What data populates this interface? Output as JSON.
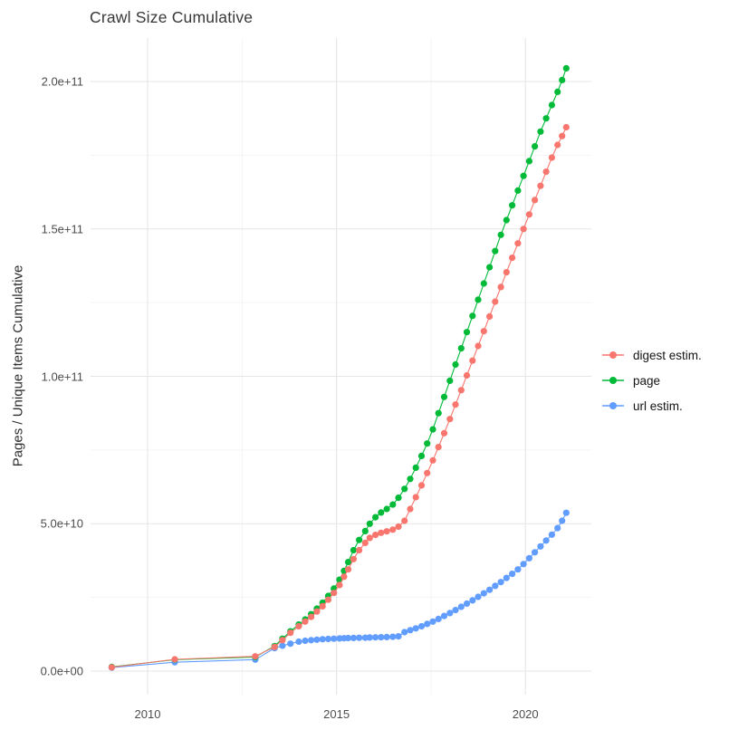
{
  "header": {
    "title": "Crawl Size Cumulative"
  },
  "y_axis": {
    "title": "Pages / Unique Items Cumulative",
    "ticks": [
      {
        "label": "0.0e+00",
        "value_billions": 0
      },
      {
        "label": "5.0e+10",
        "value_billions": 50
      },
      {
        "label": "1.0e+11",
        "value_billions": 100
      },
      {
        "label": "1.5e+11",
        "value_billions": 150
      },
      {
        "label": "2.0e+11",
        "value_billions": 200
      }
    ],
    "minor_values_billions": [
      25,
      75,
      125,
      175
    ]
  },
  "x_axis": {
    "ticks": [
      {
        "label": "2010",
        "value": 2010
      },
      {
        "label": "2015",
        "value": 2015
      },
      {
        "label": "2020",
        "value": 2020
      }
    ],
    "minor_values": [
      2012.5,
      2017.5
    ]
  },
  "legend": {
    "position": "right",
    "items": [
      {
        "label": "digest estim.",
        "color": "#F8766D",
        "series": "digest"
      },
      {
        "label": "page",
        "color": "#00BA38",
        "series": "page"
      },
      {
        "label": "url estim.",
        "color": "#619CFF",
        "series": "url"
      }
    ]
  },
  "chart_data": {
    "type": "line",
    "title": "Crawl Size Cumulative",
    "xlabel": "",
    "ylabel": "Pages / Unique Items Cumulative",
    "value_units": "billions (1e9) of pages / unique items, cumulative",
    "x_range_years": [
      2008.46,
      2021.7
    ],
    "y_range_billions": [
      -9,
      215
    ],
    "grid": true,
    "marker": "point-with-line",
    "draw_order": [
      "url",
      "page",
      "digest"
    ],
    "series": [
      {
        "name": "digest estim.",
        "key": "digest",
        "color": "#F8766D",
        "points": [
          [
            2009.05,
            1.3
          ],
          [
            2010.72,
            4.0
          ],
          [
            2012.85,
            5.0
          ],
          [
            2013.36,
            8.2
          ],
          [
            2013.57,
            10.5
          ],
          [
            2013.78,
            13.0
          ],
          [
            2014.0,
            15.2
          ],
          [
            2014.17,
            16.8
          ],
          [
            2014.33,
            18.4
          ],
          [
            2014.48,
            20.2
          ],
          [
            2014.63,
            22.0
          ],
          [
            2014.78,
            24.2
          ],
          [
            2014.93,
            26.5
          ],
          [
            2015.08,
            29.2
          ],
          [
            2015.2,
            32.0
          ],
          [
            2015.31,
            34.5
          ],
          [
            2015.45,
            38.0
          ],
          [
            2015.6,
            41.0
          ],
          [
            2015.76,
            43.5
          ],
          [
            2015.88,
            45.2
          ],
          [
            2016.03,
            46.2
          ],
          [
            2016.18,
            46.9
          ],
          [
            2016.33,
            47.4
          ],
          [
            2016.49,
            48.0
          ],
          [
            2016.64,
            49.0
          ],
          [
            2016.8,
            51.0
          ],
          [
            2016.95,
            55.0
          ],
          [
            2017.1,
            59.0
          ],
          [
            2017.25,
            63.0
          ],
          [
            2017.4,
            67.2
          ],
          [
            2017.55,
            71.5
          ],
          [
            2017.7,
            76.0
          ],
          [
            2017.85,
            80.7
          ],
          [
            2018.0,
            85.5
          ],
          [
            2018.15,
            90.4
          ],
          [
            2018.3,
            95.3
          ],
          [
            2018.45,
            100.3
          ],
          [
            2018.6,
            105.3
          ],
          [
            2018.75,
            110.3
          ],
          [
            2018.9,
            115.3
          ],
          [
            2019.05,
            120.3
          ],
          [
            2019.2,
            125.3
          ],
          [
            2019.35,
            130.3
          ],
          [
            2019.5,
            135.3
          ],
          [
            2019.65,
            140.2
          ],
          [
            2019.8,
            145.1
          ],
          [
            2019.95,
            150.0
          ],
          [
            2020.1,
            154.9
          ],
          [
            2020.25,
            159.8
          ],
          [
            2020.4,
            164.6
          ],
          [
            2020.55,
            169.4
          ],
          [
            2020.7,
            174.2
          ],
          [
            2020.85,
            178.5
          ],
          [
            2020.97,
            181.5
          ],
          [
            2021.08,
            184.5
          ]
        ]
      },
      {
        "name": "page",
        "key": "page",
        "color": "#00BA38",
        "points": [
          [
            2009.05,
            1.4
          ],
          [
            2010.72,
            3.9
          ],
          [
            2012.85,
            4.8
          ],
          [
            2013.36,
            8.5
          ],
          [
            2013.57,
            11.0
          ],
          [
            2013.78,
            13.5
          ],
          [
            2014.0,
            15.8
          ],
          [
            2014.17,
            17.5
          ],
          [
            2014.33,
            19.3
          ],
          [
            2014.48,
            21.2
          ],
          [
            2014.63,
            23.2
          ],
          [
            2014.78,
            25.5
          ],
          [
            2014.93,
            28.0
          ],
          [
            2015.08,
            31.0
          ],
          [
            2015.2,
            34.0
          ],
          [
            2015.31,
            37.0
          ],
          [
            2015.45,
            41.0
          ],
          [
            2015.6,
            44.5
          ],
          [
            2015.76,
            47.5
          ],
          [
            2015.88,
            50.0
          ],
          [
            2016.03,
            52.2
          ],
          [
            2016.18,
            53.8
          ],
          [
            2016.33,
            55.0
          ],
          [
            2016.49,
            56.5
          ],
          [
            2016.64,
            58.8
          ],
          [
            2016.8,
            61.8
          ],
          [
            2016.95,
            65.2
          ],
          [
            2017.1,
            69.0
          ],
          [
            2017.25,
            73.0
          ],
          [
            2017.4,
            77.2
          ],
          [
            2017.55,
            82.0
          ],
          [
            2017.7,
            87.5
          ],
          [
            2017.85,
            93.0
          ],
          [
            2018.0,
            98.5
          ],
          [
            2018.15,
            104.0
          ],
          [
            2018.3,
            109.5
          ],
          [
            2018.45,
            115.0
          ],
          [
            2018.6,
            120.5
          ],
          [
            2018.75,
            126.0
          ],
          [
            2018.9,
            131.5
          ],
          [
            2019.05,
            137.0
          ],
          [
            2019.2,
            142.5
          ],
          [
            2019.35,
            148.0
          ],
          [
            2019.5,
            153.0
          ],
          [
            2019.65,
            158.0
          ],
          [
            2019.8,
            163.0
          ],
          [
            2019.95,
            168.0
          ],
          [
            2020.1,
            173.0
          ],
          [
            2020.25,
            178.0
          ],
          [
            2020.4,
            183.0
          ],
          [
            2020.55,
            187.5
          ],
          [
            2020.7,
            192.0
          ],
          [
            2020.85,
            196.5
          ],
          [
            2020.97,
            200.5
          ],
          [
            2021.08,
            204.5
          ]
        ]
      },
      {
        "name": "url estim.",
        "key": "url",
        "color": "#619CFF",
        "points": [
          [
            2009.05,
            1.2
          ],
          [
            2010.72,
            3.0
          ],
          [
            2012.85,
            3.9
          ],
          [
            2013.36,
            7.8
          ],
          [
            2013.57,
            8.6
          ],
          [
            2013.78,
            9.3
          ],
          [
            2014.0,
            10.0
          ],
          [
            2014.17,
            10.3
          ],
          [
            2014.33,
            10.5
          ],
          [
            2014.48,
            10.65
          ],
          [
            2014.63,
            10.8
          ],
          [
            2014.78,
            10.9
          ],
          [
            2014.93,
            11.0
          ],
          [
            2015.08,
            11.1
          ],
          [
            2015.2,
            11.15
          ],
          [
            2015.31,
            11.2
          ],
          [
            2015.45,
            11.25
          ],
          [
            2015.6,
            11.3
          ],
          [
            2015.76,
            11.35
          ],
          [
            2015.88,
            11.4
          ],
          [
            2016.03,
            11.45
          ],
          [
            2016.18,
            11.5
          ],
          [
            2016.33,
            11.55
          ],
          [
            2016.49,
            11.65
          ],
          [
            2016.64,
            11.8
          ],
          [
            2016.8,
            13.2
          ],
          [
            2016.95,
            13.9
          ],
          [
            2017.1,
            14.5
          ],
          [
            2017.25,
            15.2
          ],
          [
            2017.4,
            16.0
          ],
          [
            2017.55,
            16.8
          ],
          [
            2017.7,
            17.7
          ],
          [
            2017.85,
            18.7
          ],
          [
            2018.0,
            19.7
          ],
          [
            2018.15,
            20.7
          ],
          [
            2018.3,
            21.8
          ],
          [
            2018.45,
            22.9
          ],
          [
            2018.6,
            24.0
          ],
          [
            2018.75,
            25.2
          ],
          [
            2018.9,
            26.4
          ],
          [
            2019.05,
            27.6
          ],
          [
            2019.2,
            28.9
          ],
          [
            2019.35,
            30.2
          ],
          [
            2019.5,
            31.6
          ],
          [
            2019.65,
            33.0
          ],
          [
            2019.8,
            34.5
          ],
          [
            2019.95,
            36.3
          ],
          [
            2020.1,
            38.3
          ],
          [
            2020.25,
            40.3
          ],
          [
            2020.4,
            42.3
          ],
          [
            2020.55,
            44.3
          ],
          [
            2020.7,
            46.3
          ],
          [
            2020.85,
            48.5
          ],
          [
            2020.97,
            51.0
          ],
          [
            2021.08,
            53.7
          ]
        ]
      }
    ]
  },
  "style": {
    "grid_major_color": "#e5e5e5",
    "grid_minor_color": "#f2f2f2",
    "background": "#ffffff"
  }
}
